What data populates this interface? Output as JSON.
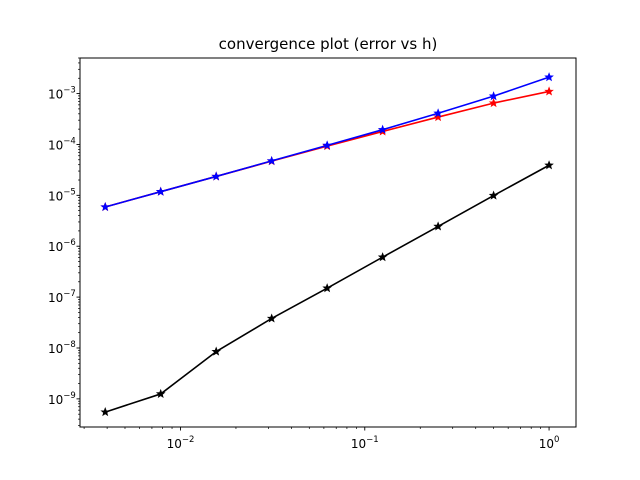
{
  "chart_data": {
    "type": "line",
    "title": "convergence plot (error vs h)",
    "xlabel": "",
    "ylabel": "",
    "x_scale": "log",
    "y_scale": "log",
    "xlim": [
      0.00285,
      1.4
    ],
    "ylim": [
      2.8e-10,
      0.005
    ],
    "grid": false,
    "legend": "none",
    "x_ticks": [
      {
        "value": 0.01,
        "label_base": "10",
        "label_exp": "−2"
      },
      {
        "value": 0.1,
        "label_base": "10",
        "label_exp": "−1"
      },
      {
        "value": 1,
        "label_base": "10",
        "label_exp": "0"
      }
    ],
    "y_ticks": [
      {
        "value": 1e-09,
        "label_base": "10",
        "label_exp": "−9"
      },
      {
        "value": 1e-08,
        "label_base": "10",
        "label_exp": "−8"
      },
      {
        "value": 1e-07,
        "label_base": "10",
        "label_exp": "−7"
      },
      {
        "value": 1e-06,
        "label_base": "10",
        "label_exp": "−6"
      },
      {
        "value": 1e-05,
        "label_base": "10",
        "label_exp": "−5"
      },
      {
        "value": 0.0001,
        "label_base": "10",
        "label_exp": "−4"
      },
      {
        "value": 0.001,
        "label_base": "10",
        "label_exp": "−3"
      }
    ],
    "x": [
      0.00390625,
      0.0078125,
      0.015625,
      0.03125,
      0.0625,
      0.125,
      0.25,
      0.5,
      1.0
    ],
    "series": [
      {
        "color": "#ff0000",
        "marker": "star",
        "values": [
          5.9e-06,
          1.18e-05,
          2.35e-05,
          4.7e-05,
          9.3e-05,
          0.00018,
          0.000345,
          0.00065,
          0.0011
        ]
      },
      {
        "color": "#0000ff",
        "marker": "star",
        "values": [
          5.9e-06,
          1.18e-05,
          2.35e-05,
          4.75e-05,
          9.6e-05,
          0.000195,
          0.00041,
          0.00089,
          0.0021
        ]
      },
      {
        "color": "#000000",
        "marker": "star",
        "values": [
          5.5e-10,
          1.25e-09,
          8.5e-09,
          3.8e-08,
          1.5e-07,
          6.1e-07,
          2.45e-06,
          9.9e-06,
          3.9e-05
        ]
      }
    ]
  }
}
